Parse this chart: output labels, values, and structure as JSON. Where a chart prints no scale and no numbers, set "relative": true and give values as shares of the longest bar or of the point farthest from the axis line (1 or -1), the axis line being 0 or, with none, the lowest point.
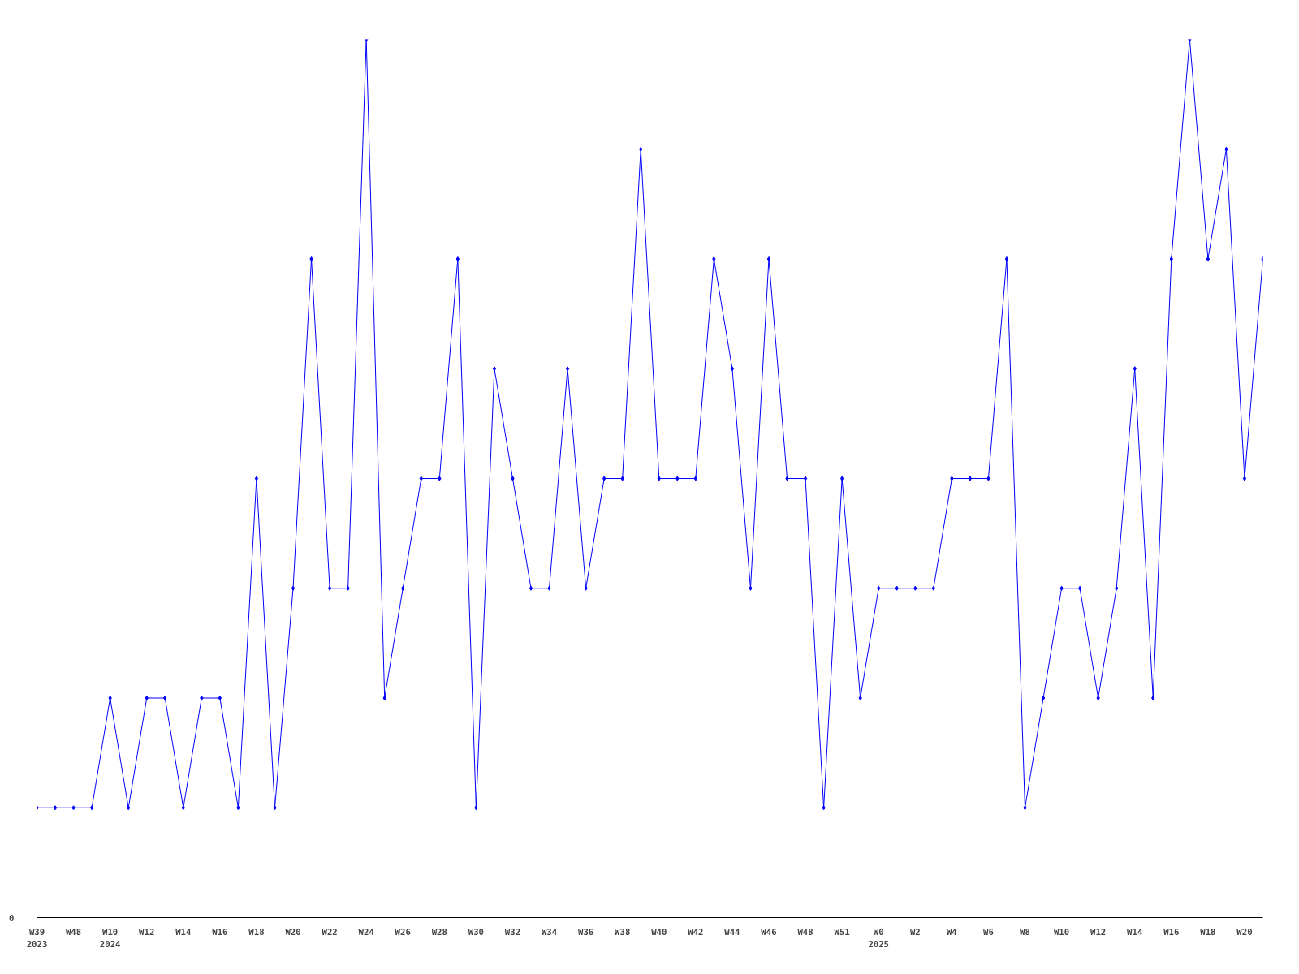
{
  "chart_data": {
    "type": "line",
    "relative": true,
    "marker": "diamond",
    "line_style": "solid",
    "grid": false,
    "legend": false,
    "annotations": [
      "0"
    ],
    "categories": [
      "W39\n2023",
      null,
      "W48",
      null,
      "W10\n2024",
      null,
      "W12",
      null,
      "W14",
      null,
      "W16",
      null,
      "W18",
      null,
      "W20",
      null,
      "W22",
      null,
      "W24",
      null,
      "W26",
      null,
      "W28",
      null,
      "W30",
      null,
      "W32",
      null,
      "W34",
      null,
      "W36",
      null,
      "W38",
      null,
      "W40",
      null,
      "W42",
      null,
      "W44",
      null,
      "W46",
      null,
      "W48",
      null,
      "W51",
      null,
      "W0\n2025",
      null,
      "W2",
      null,
      "W4",
      null,
      "W6",
      null,
      "W8",
      null,
      "W10",
      null,
      "W12",
      null,
      "W14",
      null,
      "W16",
      null,
      "W18",
      null,
      "W20",
      null
    ],
    "series": [
      {
        "color": "#0000ff",
        "values": [
          0.125,
          0.125,
          0.125,
          0.125,
          0.25,
          0.125,
          0.25,
          0.25,
          0.125,
          0.25,
          0.25,
          0.125,
          0.5,
          0.125,
          0.375,
          0.75,
          0.375,
          0.375,
          1,
          0.25,
          0.375,
          0.5,
          0.5,
          0.75,
          0.125,
          0.625,
          0.5,
          0.375,
          0.375,
          0.625,
          0.375,
          0.5,
          0.5,
          0.875,
          0.5,
          0.5,
          0.5,
          0.75,
          0.625,
          0.375,
          0.75,
          0.5,
          0.5,
          0.125,
          0.5,
          0.25,
          0.375,
          0.375,
          0.375,
          0.375,
          0.5,
          0.5,
          0.5,
          0.75,
          0.125,
          0.25,
          0.375,
          0.375,
          0.25,
          0.375,
          0.625,
          0.25,
          0.75,
          1,
          0.75,
          0.875,
          0.5,
          0.75
        ]
      }
    ]
  }
}
